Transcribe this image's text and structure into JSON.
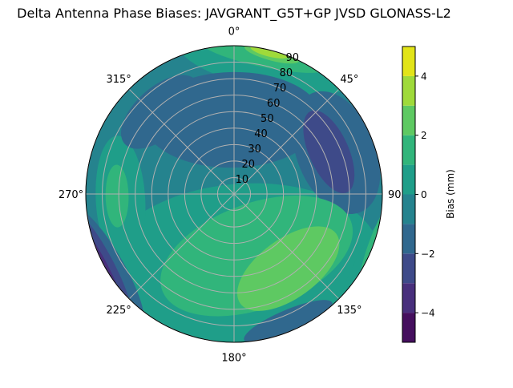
{
  "chart_data": {
    "type": "contour",
    "projection": "polar",
    "title": "Delta Antenna Phase Biases: JAVGRANT_G5T+GP JVSD GLONASS-L2",
    "theta_zero": "north",
    "theta_direction": "clockwise",
    "angular_ticks": [
      "0°",
      "45°",
      "90°",
      "135°",
      "180°",
      "225°",
      "270°",
      "315°"
    ],
    "radial_ticks": [
      "10",
      "20",
      "30",
      "40",
      "50",
      "60",
      "70",
      "80",
      "90"
    ],
    "rlim": [
      0,
      90
    ],
    "grid": true,
    "levels": [
      -5,
      -4,
      -3,
      -2,
      -1,
      0,
      1,
      2,
      3,
      4,
      5
    ],
    "level_colors": [
      "#450f5e",
      "#482f7c",
      "#3e4a89",
      "#30688e",
      "#25838e",
      "#1f9e89",
      "#31b57b",
      "#5ec962",
      "#9fda3a",
      "#e2e418"
    ],
    "background_level": [
      -1,
      0
    ],
    "regions": [
      {
        "band": [
          0,
          1
        ],
        "azimuth": 175,
        "radius": 43,
        "tangential": 85,
        "radial": 49
      },
      {
        "band": [
          0,
          1
        ],
        "azimuth": 267,
        "radius": 69,
        "tangential": 39,
        "radial": 15
      },
      {
        "band": [
          0,
          1
        ],
        "azimuth": 13,
        "radius": 81,
        "tangential": 53,
        "radial": 15
      },
      {
        "band": [
          0,
          1
        ],
        "azimuth": 117,
        "radius": 94,
        "tangential": 44,
        "radial": 10
      },
      {
        "band": [
          -2,
          -1
        ],
        "azimuth": 359,
        "radius": 45,
        "tangential": 54,
        "radial": 29
      },
      {
        "band": [
          -2,
          -1
        ],
        "azimuth": 318,
        "radius": 67,
        "tangential": 29,
        "radial": 15
      },
      {
        "band": [
          -2,
          -1
        ],
        "azimuth": 68,
        "radius": 67,
        "tangential": 39,
        "radial": 24
      },
      {
        "band": [
          -2,
          -1
        ],
        "azimuth": 157,
        "radius": 84,
        "tangential": 29,
        "radial": 7
      },
      {
        "band": [
          -3,
          -2
        ],
        "azimuth": 66,
        "radius": 63,
        "tangential": 27,
        "radial": 12
      },
      {
        "band": [
          -2,
          -1
        ],
        "azimuth": 240,
        "radius": 88,
        "tangential": 40,
        "radial": 9
      },
      {
        "band": [
          -3,
          -2
        ],
        "azimuth": 242,
        "radius": 90,
        "tangential": 34,
        "radial": 6
      },
      {
        "band": [
          -4,
          -3
        ],
        "azimuth": 242,
        "radius": 92,
        "tangential": 28,
        "radial": 4
      },
      {
        "band": [
          -5,
          -4
        ],
        "azimuth": 243,
        "radius": 94,
        "tangential": 22,
        "radial": 3
      },
      {
        "band": [
          1,
          2
        ],
        "azimuth": 160,
        "radius": 40,
        "tangential": 61,
        "radial": 32
      },
      {
        "band": [
          1,
          2
        ],
        "azimuth": 269,
        "radius": 71,
        "tangential": 19,
        "radial": 7
      },
      {
        "band": [
          1,
          2
        ],
        "azimuth": 12,
        "radius": 86,
        "tangential": 39,
        "radial": 7
      },
      {
        "band": [
          1,
          2
        ],
        "azimuth": 110,
        "radius": 93,
        "tangential": 30,
        "radial": 6
      },
      {
        "band": [
          2,
          3
        ],
        "azimuth": 144,
        "radius": 56,
        "tangential": 36,
        "radial": 18
      },
      {
        "band": [
          2,
          3
        ],
        "azimuth": 15,
        "radius": 88,
        "tangential": 17,
        "radial": 4
      },
      {
        "band": [
          2,
          3
        ],
        "azimuth": 108,
        "radius": 95,
        "tangential": 20,
        "radial": 3
      },
      {
        "band": [
          3,
          4
        ],
        "azimuth": 14,
        "radius": 89,
        "tangential": 12,
        "radial": 3
      }
    ],
    "colorbar": {
      "label": "Bias (mm)",
      "ticks": [
        "−4",
        "−2",
        "0",
        "2",
        "4"
      ],
      "tick_values": [
        -4,
        -2,
        0,
        2,
        4
      ],
      "range": [
        -5,
        5
      ]
    }
  }
}
